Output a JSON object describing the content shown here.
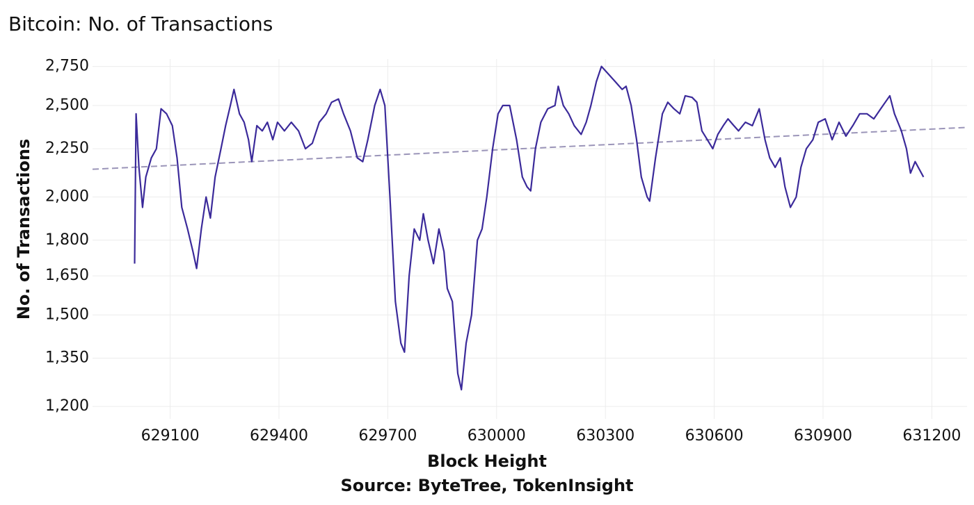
{
  "chart_data": {
    "type": "line",
    "title": "Bitcoin: No. of Transactions",
    "x_label": "Block Height",
    "y_label": "No. of Transactions",
    "source": "Source: ByteTree, TokenInsight",
    "x": [
      629002,
      629006,
      629014,
      629024,
      629033,
      629048,
      629062,
      629075,
      629090,
      629106,
      629119,
      629132,
      629148,
      629163,
      629173,
      629186,
      629199,
      629211,
      629224,
      629240,
      629253,
      629266,
      629276,
      629291,
      629304,
      629316,
      629325,
      629339,
      629354,
      629368,
      629383,
      629396,
      629415,
      629434,
      629454,
      629473,
      629492,
      629511,
      629530,
      629545,
      629564,
      629578,
      629597,
      629616,
      629631,
      629645,
      629664,
      629679,
      629692,
      629706,
      629721,
      629736,
      629746,
      629759,
      629773,
      629788,
      629798,
      629811,
      629826,
      629841,
      629855,
      629864,
      629878,
      629893,
      629903,
      629916,
      629931,
      629947,
      629960,
      629973,
      629989,
      630004,
      630017,
      630036,
      630055,
      630071,
      630084,
      630094,
      630107,
      630122,
      630141,
      630161,
      630170,
      630184,
      630199,
      630214,
      630233,
      630247,
      630260,
      630275,
      630289,
      630308,
      630327,
      630346,
      630357,
      630371,
      630386,
      630399,
      630415,
      630422,
      630438,
      630457,
      630472,
      630489,
      630505,
      630520,
      630539,
      630552,
      630566,
      630581,
      630596,
      630610,
      630625,
      630638,
      630654,
      630667,
      630686,
      630705,
      630724,
      630740,
      630753,
      630768,
      630782,
      630795,
      630810,
      630826,
      630839,
      630854,
      630872,
      630887,
      630906,
      630925,
      630944,
      630963,
      630982,
      631001,
      631021,
      631040,
      631059,
      631084,
      631097,
      631116,
      631130,
      631141,
      631154,
      631177
    ],
    "series": [
      {
        "name": "No. of Transactions",
        "color": "#3b2a9a",
        "values": [
          1700,
          2450,
          2150,
          1950,
          2100,
          2200,
          2250,
          2480,
          2450,
          2380,
          2200,
          1950,
          1850,
          1750,
          1680,
          1850,
          2000,
          1900,
          2100,
          2250,
          2380,
          2500,
          2600,
          2450,
          2400,
          2300,
          2180,
          2380,
          2350,
          2400,
          2300,
          2400,
          2350,
          2400,
          2350,
          2250,
          2280,
          2400,
          2450,
          2520,
          2540,
          2450,
          2350,
          2200,
          2180,
          2300,
          2500,
          2600,
          2500,
          2000,
          1550,
          1400,
          1370,
          1650,
          1850,
          1800,
          1920,
          1800,
          1700,
          1850,
          1750,
          1600,
          1550,
          1300,
          1250,
          1400,
          1500,
          1800,
          1850,
          2000,
          2250,
          2450,
          2500,
          2500,
          2300,
          2100,
          2050,
          2030,
          2250,
          2400,
          2480,
          2500,
          2620,
          2500,
          2450,
          2380,
          2330,
          2400,
          2500,
          2650,
          2750,
          2700,
          2650,
          2600,
          2620,
          2500,
          2300,
          2100,
          2000,
          1980,
          2200,
          2450,
          2520,
          2480,
          2450,
          2560,
          2550,
          2520,
          2350,
          2300,
          2250,
          2330,
          2380,
          2420,
          2380,
          2350,
          2400,
          2380,
          2480,
          2300,
          2200,
          2150,
          2200,
          2050,
          1950,
          2000,
          2150,
          2250,
          2300,
          2400,
          2420,
          2300,
          2400,
          2320,
          2380,
          2450,
          2450,
          2420,
          2480,
          2560,
          2450,
          2350,
          2250,
          2120,
          2180,
          2100
        ]
      }
    ],
    "trendline": {
      "x": [
        628886,
        631297
      ],
      "values": [
        2140,
        2370
      ],
      "color": "#9a94b8"
    },
    "xlim": [
      628886,
      631297
    ],
    "xticks": [
      629100,
      629400,
      629700,
      630000,
      630300,
      630600,
      630900,
      631200
    ],
    "ylim": [
      1180,
      2800
    ],
    "log_scale": true,
    "yticks": [
      {
        "value": 1200,
        "label": "1,200"
      },
      {
        "value": 1350,
        "label": "1,350"
      },
      {
        "value": 1500,
        "label": "1,500"
      },
      {
        "value": 1650,
        "label": "1,650"
      },
      {
        "value": 1800,
        "label": "1,800"
      },
      {
        "value": 2000,
        "label": "2,000"
      },
      {
        "value": 2250,
        "label": "2,250"
      },
      {
        "value": 2500,
        "label": "2,500"
      },
      {
        "value": 2750,
        "label": "2,750"
      }
    ],
    "grid": true
  }
}
